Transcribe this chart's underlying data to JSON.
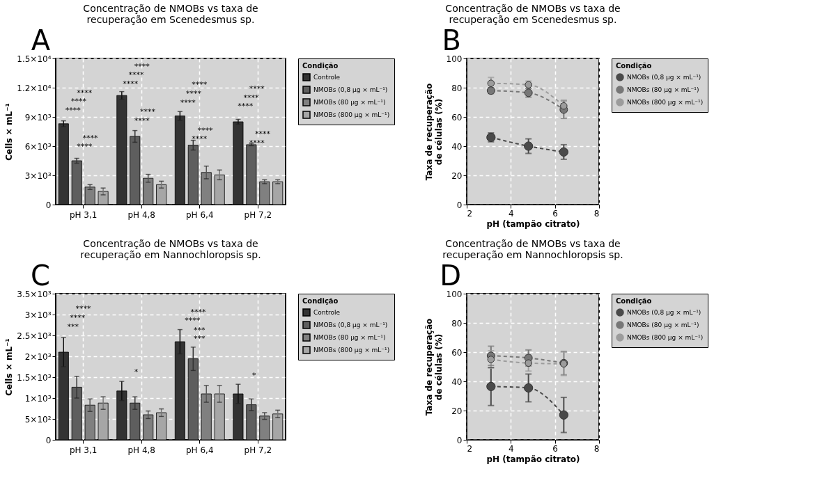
{
  "chart_data": [
    {
      "type": "bar",
      "title": "Concentração de NMOBs vs taxa de\nrecuperação em Scenedesmus sp.",
      "ylabel": "Cells × mL⁻¹",
      "legend_title": "Condição",
      "legend": "right",
      "grid": true,
      "categories": [
        "pH 3,1",
        "pH 4,8",
        "pH 6,4",
        "pH 7,2"
      ],
      "ylim": [
        0,
        15000
      ],
      "yticks": [
        0,
        {
          "value": 3000,
          "label": "3×10³"
        },
        {
          "value": 6000,
          "label": "6×10³"
        },
        {
          "value": 9000,
          "label": "9×10³"
        },
        {
          "value": 12000,
          "label": "1.2×10⁴"
        },
        {
          "value": 15000,
          "label": "1.5×10⁴"
        }
      ],
      "series": [
        {
          "name": "Controle",
          "color": "#333333",
          "values": [
            8300,
            11200,
            9100,
            8500
          ],
          "errors": [
            300,
            400,
            450,
            250
          ]
        },
        {
          "name": "NMOBs (0,8 µg × mL⁻¹)",
          "color": "#5e5e5e",
          "values": [
            4500,
            7000,
            6100,
            6150
          ],
          "errors": [
            250,
            600,
            500,
            100
          ]
        },
        {
          "name": "NMOBs (80 µg × mL⁻¹)",
          "color": "#808080",
          "values": [
            1800,
            2700,
            3300,
            2350
          ],
          "errors": [
            250,
            400,
            650,
            200
          ]
        },
        {
          "name": "NMOBs (800 µg × mL⁻¹)",
          "color": "#a6a6a6",
          "values": [
            1350,
            2050,
            3050,
            2350
          ],
          "errors": [
            350,
            350,
            500,
            200
          ]
        }
      ],
      "annotations": [
        "A",
        "****",
        "****",
        "****",
        "****",
        "****",
        "****",
        "****",
        "****",
        "****",
        "****",
        "****",
        "****",
        "****",
        "****",
        "****",
        "****",
        "****",
        "****",
        "****",
        "****"
      ]
    },
    {
      "type": "line",
      "title": "Concentração de NMOBs vs taxa de\nrecuperação em Scenedesmus sp.",
      "ylabel": "Taxa de recuperação\nde células (%)",
      "xlabel": "pH (tampão citrato)",
      "legend_title": "Condição",
      "legend": "right",
      "grid": true,
      "marker": "circle",
      "line_style": "dashed",
      "x": [
        3.1,
        4.8,
        6.4
      ],
      "xlim": [
        2,
        8
      ],
      "xticks": [
        2,
        4,
        6,
        8
      ],
      "ylim": [
        0,
        100
      ],
      "yticks": [
        0,
        20,
        40,
        60,
        80,
        100
      ],
      "series": [
        {
          "name": "NMOBs (0,8 µg × mL⁻¹)",
          "color": "#4a4a4a",
          "values": [
            46,
            40,
            36
          ],
          "errors": [
            3,
            5,
            5
          ]
        },
        {
          "name": "NMOBs (80 µg × mL⁻¹)",
          "color": "#777777",
          "values": [
            78,
            76.5,
            65
          ],
          "errors": [
            2,
            3,
            6
          ]
        },
        {
          "name": "NMOBs (800 µg × mL⁻¹)",
          "color": "#9c9c9c",
          "values": [
            83,
            82,
            67.5
          ],
          "errors": [
            4,
            2.5,
            4
          ]
        }
      ],
      "annotations": [
        "B"
      ]
    },
    {
      "type": "bar",
      "title": "Concentração de NMOBs vs taxa de\nrecuperação em Nannochloropsis sp.",
      "ylabel": "Cells × mL⁻¹",
      "legend_title": "Condição",
      "legend": "right",
      "grid": true,
      "categories": [
        "pH 3,1",
        "pH 4,8",
        "pH 6,4",
        "pH 7,2"
      ],
      "ylim": [
        0,
        3500
      ],
      "yticks": [
        0,
        {
          "value": 500,
          "label": "5×10²"
        },
        {
          "value": 1000,
          "label": "1×10³"
        },
        {
          "value": 1500,
          "label": "1.5×10³"
        },
        {
          "value": 2000,
          "label": "2×10³"
        },
        {
          "value": 2500,
          "label": "2.5×10³"
        },
        {
          "value": 3000,
          "label": "3×10³"
        },
        {
          "value": 3500,
          "label": "3.5×10³"
        }
      ],
      "series": [
        {
          "name": "Controle",
          "color": "#333333",
          "values": [
            2100,
            1170,
            2350,
            1100
          ],
          "errors": [
            350,
            230,
            290,
            230
          ]
        },
        {
          "name": "NMOBs (0,8 µg × mL⁻¹)",
          "color": "#5e5e5e",
          "values": [
            1260,
            880,
            1940,
            840
          ],
          "errors": [
            260,
            150,
            280,
            140
          ]
        },
        {
          "name": "NMOBs (80 µg × mL⁻¹)",
          "color": "#808080",
          "values": [
            830,
            600,
            1100,
            570
          ],
          "errors": [
            150,
            90,
            200,
            80
          ]
        },
        {
          "name": "NMOBs (800 µg × mL⁻¹)",
          "color": "#a6a6a6",
          "values": [
            880,
            650,
            1100,
            620
          ],
          "errors": [
            150,
            90,
            200,
            90
          ]
        }
      ],
      "annotations": [
        "C",
        "***",
        "****",
        "****",
        "*",
        "***",
        "***",
        "****",
        "****",
        "*"
      ]
    },
    {
      "type": "line",
      "title": "Concentração de NMOBs vs taxa de\nrecuperação em Nannochloropsis sp.",
      "ylabel": "Taxa de recuperação\nde células (%)",
      "xlabel": "pH (tampão citrato)",
      "legend_title": "Condição",
      "legend": "right",
      "grid": true,
      "marker": "circle",
      "line_style": "dashed",
      "x": [
        3.1,
        4.8,
        6.4
      ],
      "xlim": [
        2,
        8
      ],
      "xticks": [
        2,
        4,
        6,
        8
      ],
      "ylim": [
        0,
        100
      ],
      "yticks": [
        0,
        20,
        40,
        60,
        80,
        100
      ],
      "series": [
        {
          "name": "NMOBs (0,8 µg × mL⁻¹)",
          "color": "#4a4a4a",
          "values": [
            36.5,
            35.5,
            17
          ],
          "errors": [
            13,
            9.5,
            12
          ]
        },
        {
          "name": "NMOBs (80 µg × mL⁻¹)",
          "color": "#777777",
          "values": [
            57.5,
            56,
            52.5
          ],
          "errors": [
            6.5,
            5.5,
            8
          ]
        },
        {
          "name": "NMOBs (800 µg × mL⁻¹)",
          "color": "#9c9c9c",
          "values": [
            55,
            52.5,
            52
          ],
          "errors": [
            6,
            5.5,
            8
          ]
        }
      ],
      "annotations": [
        "D"
      ]
    }
  ]
}
